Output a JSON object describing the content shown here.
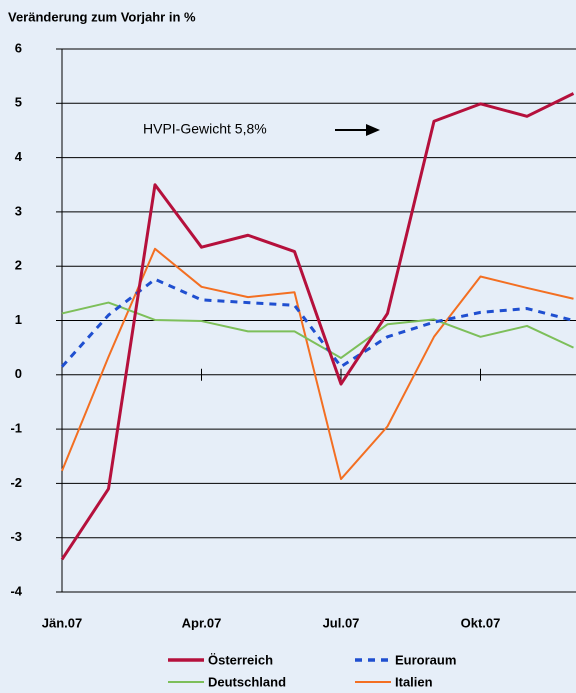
{
  "chart_data": {
    "type": "line",
    "title": "Veränderung zum Vorjahr in %",
    "annotation": "HVPI-Gewicht 5,8%",
    "categories": [
      "Jän.07",
      null,
      null,
      "Apr.07",
      null,
      null,
      "Jul.07",
      null,
      null,
      "Okt.07",
      null,
      null
    ],
    "series": [
      {
        "name": "Österreich",
        "color": "#b5103c",
        "values": [
          -3.4,
          -2.1,
          3.5,
          2.35,
          2.57,
          2.27,
          -0.17,
          1.13,
          4.67,
          4.99,
          4.76,
          5.18
        ]
      },
      {
        "name": "Euroraum",
        "color": "#1f4fd0",
        "dashed": true,
        "values": [
          0.15,
          1.1,
          1.76,
          1.38,
          1.33,
          1.28,
          0.15,
          0.7,
          0.97,
          1.15,
          1.22,
          1.0
        ]
      },
      {
        "name": "Deutschland",
        "color": "#7dbf5a",
        "values": [
          1.13,
          1.33,
          1.01,
          0.99,
          0.8,
          0.8,
          0.31,
          0.93,
          1.02,
          0.7,
          0.9,
          0.5
        ]
      },
      {
        "name": "Italien",
        "color": "#f36f22",
        "values": [
          -1.77,
          0.33,
          2.32,
          1.62,
          1.43,
          1.52,
          -1.92,
          -0.95,
          0.7,
          1.81,
          1.6,
          1.4
        ]
      }
    ],
    "ylim": [
      -4,
      6
    ],
    "yticks": [
      -4,
      -3,
      -2,
      -1,
      0,
      1,
      2,
      3,
      4,
      5,
      6
    ],
    "grid": true
  }
}
